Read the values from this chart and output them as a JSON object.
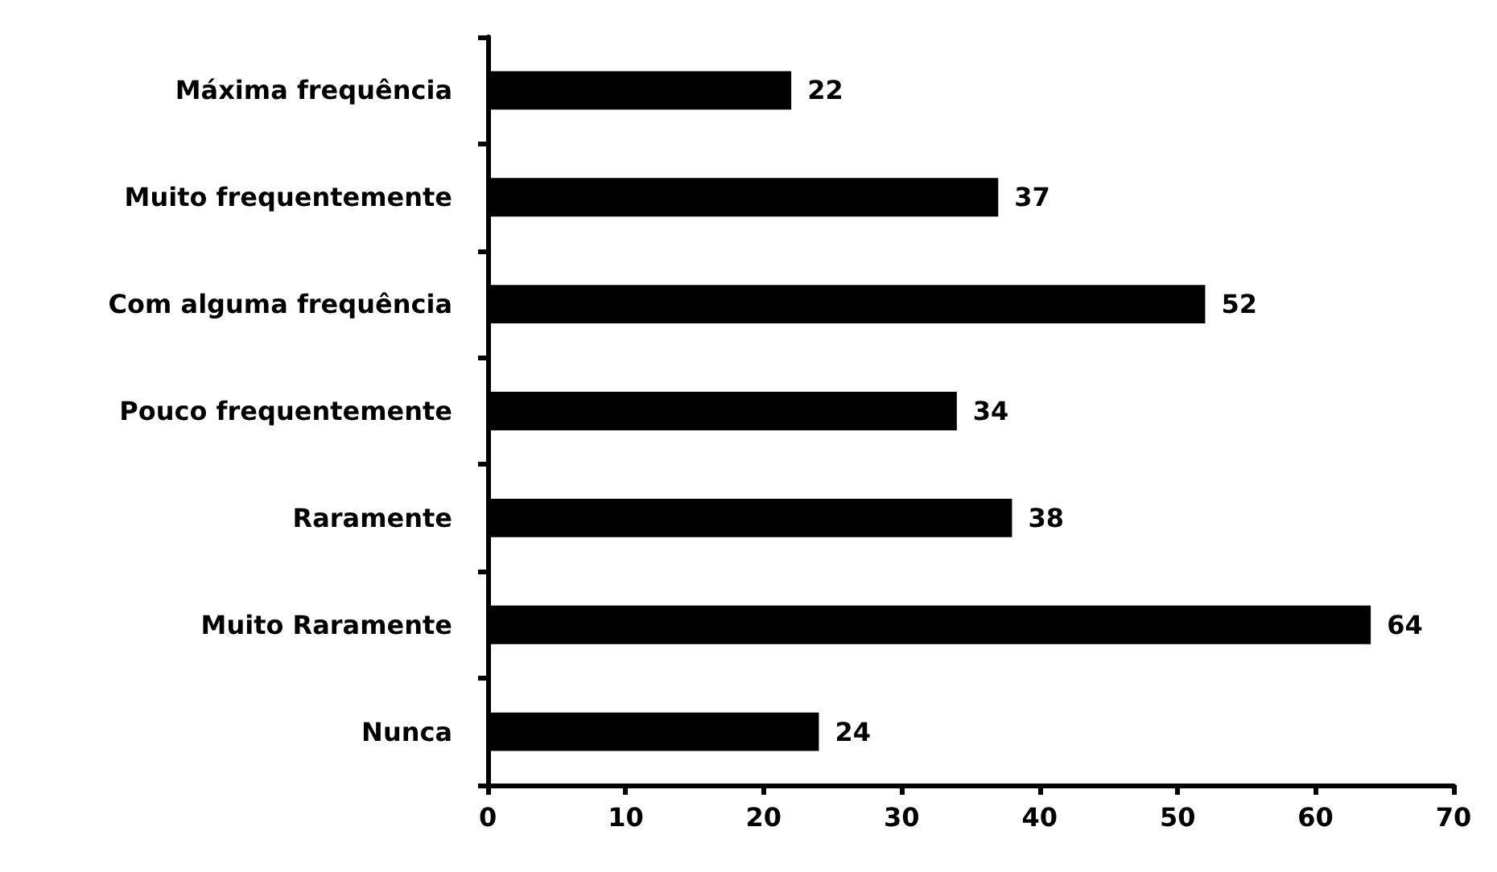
{
  "chart_data": {
    "type": "bar",
    "orientation": "horizontal",
    "categories": [
      "Máxima frequência",
      "Muito frequentemente",
      "Com alguma frequência",
      "Pouco frequentemente",
      "Raramente",
      "Muito Raramente",
      "Nunca"
    ],
    "values": [
      22,
      37,
      52,
      34,
      38,
      64,
      24
    ],
    "color": "#000000",
    "xlim": [
      0,
      70
    ],
    "xticks": [
      0,
      10,
      20,
      30,
      40,
      50,
      60,
      70
    ],
    "data_labels": true,
    "grid": false
  }
}
